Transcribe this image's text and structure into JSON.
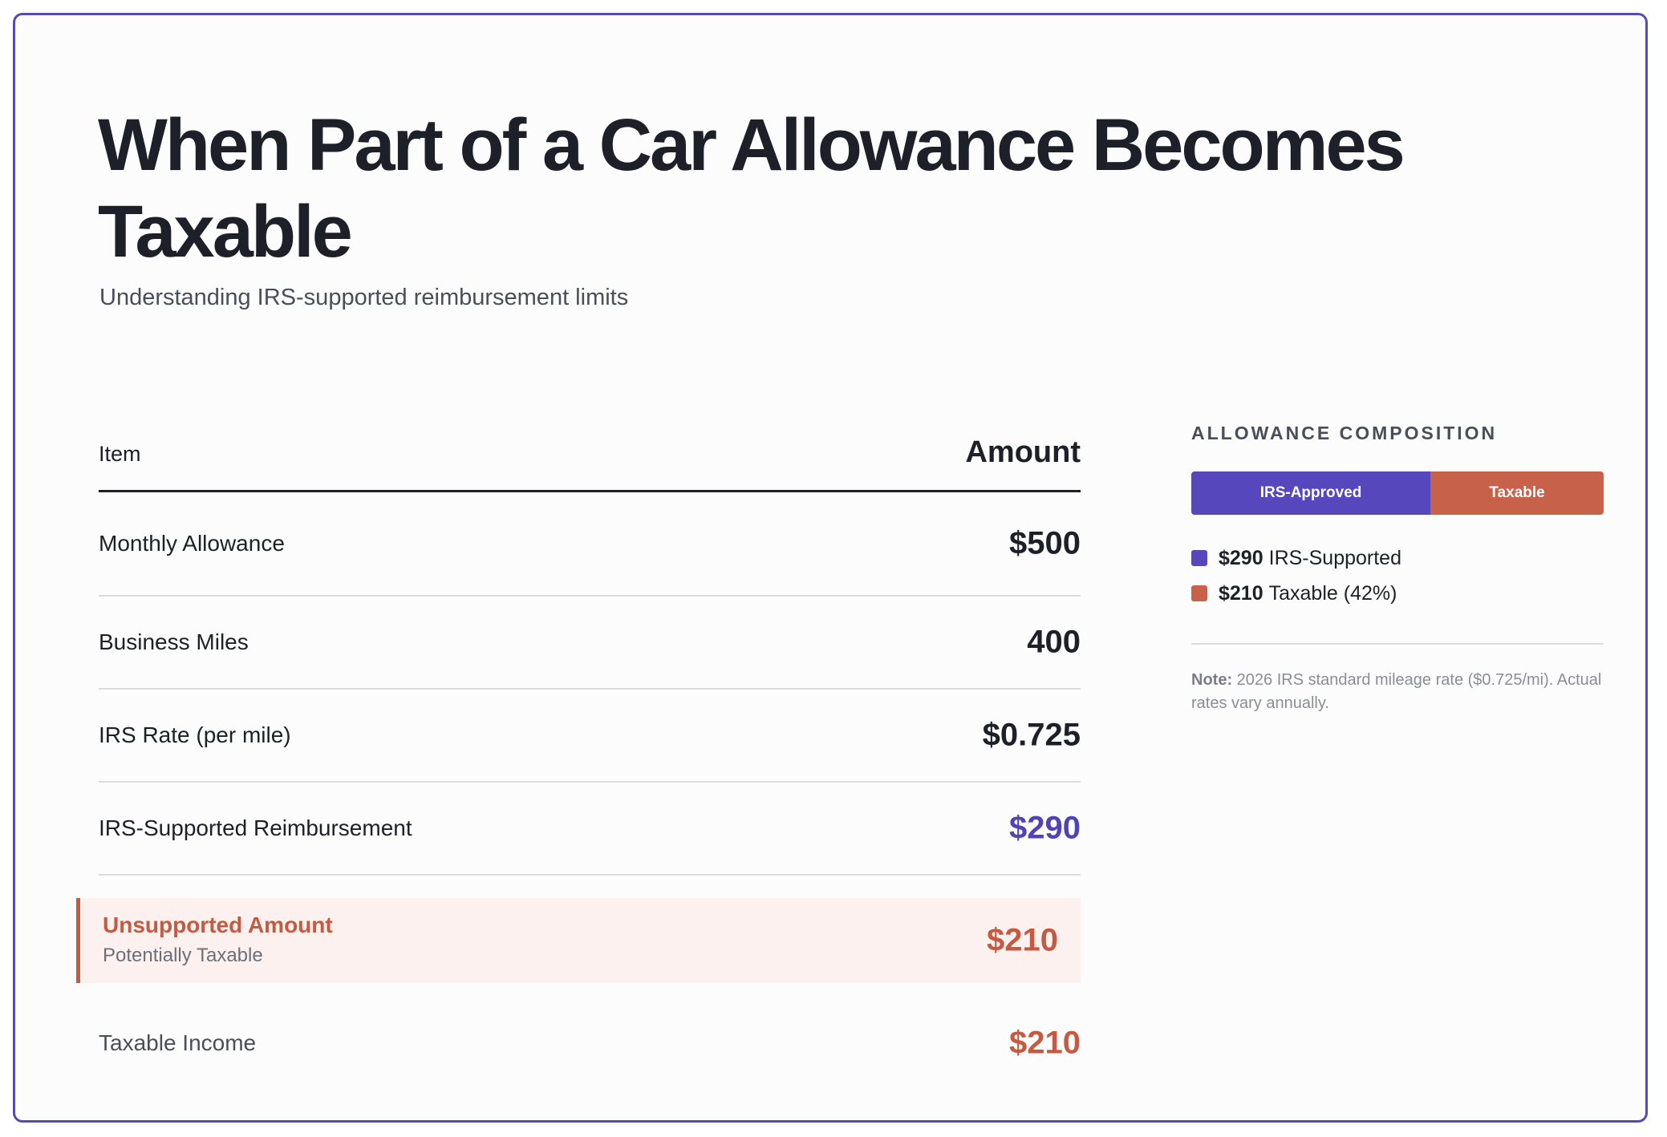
{
  "header": {
    "title": "When Part of a Car Allowance Becomes Taxable",
    "subtitle": "Understanding IRS-supported reimbursement limits"
  },
  "table": {
    "col_item": "Item",
    "col_amount": "Amount",
    "rows": [
      {
        "label": "Monthly Allowance",
        "value": "$500"
      },
      {
        "label": "Business Miles",
        "value": "400"
      },
      {
        "label": "IRS Rate (per mile)",
        "value": "$0.725"
      },
      {
        "label": "IRS-Supported Reimbursement",
        "value": "$290"
      }
    ],
    "highlight": {
      "label": "Unsupported Amount",
      "sublabel": "Potentially Taxable",
      "value": "$210"
    },
    "total": {
      "label": "Taxable Income",
      "value": "$210"
    }
  },
  "composition": {
    "heading": "ALLOWANCE COMPOSITION",
    "approved_fraction": 0.58,
    "taxable_fraction": 0.42,
    "approved_label": "IRS-Approved",
    "taxable_label": "Taxable",
    "legend": [
      {
        "amount": "$290",
        "text": "IRS-Supported",
        "color": "#5647bd"
      },
      {
        "amount": "$210",
        "text": "Taxable (42%)",
        "color": "#c8614a"
      }
    ],
    "note_label": "Note:",
    "note_text": "2026 IRS standard mileage rate ($0.725/mi). Actual rates vary annually."
  },
  "colors": {
    "border": "#5649b8",
    "accent": "#5143b5",
    "taxable": "#c35a41",
    "highlight_bg": "#fdf1ef"
  }
}
